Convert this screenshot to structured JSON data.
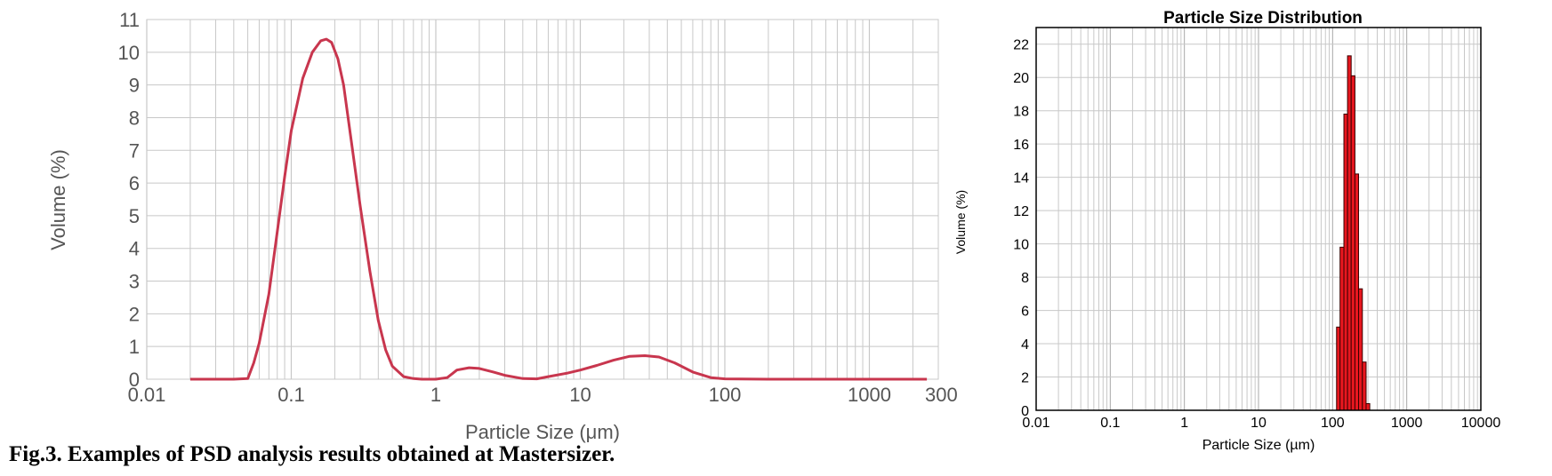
{
  "caption": "Fig.3.  Examples of PSD analysis results obtained at Mastersizer.",
  "colors": {
    "curve": "#c8364e",
    "bar_fill": "#e8171f",
    "bar_stroke": "#3a0000",
    "grid": "#c8c8c8",
    "left_text": "#555555",
    "right_text": "#000000"
  },
  "chart_data": [
    {
      "type": "line",
      "title": "",
      "xlabel": "Particle Size (μm)",
      "ylabel": "Volume (%)",
      "xscale": "log",
      "xlim": [
        0.01,
        3000
      ],
      "ylim": [
        0,
        11
      ],
      "xticks": [
        0.01,
        0.1,
        1,
        10,
        100,
        1000
      ],
      "xtick_labels": [
        "0.01",
        "0.1",
        "1",
        "10",
        "100",
        "1000"
      ],
      "x_end_label": "300",
      "yticks": [
        0,
        1,
        2,
        3,
        4,
        5,
        6,
        7,
        8,
        9,
        10,
        11
      ],
      "grid": true,
      "series": [
        {
          "x": [
            0.02,
            0.03,
            0.04,
            0.05,
            0.055,
            0.06,
            0.07,
            0.08,
            0.09,
            0.1,
            0.12,
            0.14,
            0.16,
            0.175,
            0.19,
            0.21,
            0.23,
            0.26,
            0.3,
            0.35,
            0.4,
            0.45,
            0.5,
            0.6,
            0.7,
            0.8,
            1.0,
            1.2,
            1.4,
            1.7,
            2.0,
            2.5,
            3.0,
            4.0,
            5.0,
            6.0,
            8.0,
            10,
            13,
            17,
            22,
            28,
            35,
            45,
            60,
            80,
            100,
            200,
            500,
            1000,
            2500
          ],
          "y": [
            0,
            0,
            0,
            0.02,
            0.5,
            1.1,
            2.6,
            4.5,
            6.2,
            7.6,
            9.2,
            10.0,
            10.35,
            10.4,
            10.3,
            9.8,
            9.0,
            7.3,
            5.3,
            3.3,
            1.8,
            0.9,
            0.4,
            0.08,
            0.02,
            0,
            0,
            0.05,
            0.28,
            0.35,
            0.33,
            0.22,
            0.12,
            0.02,
            0.01,
            0.08,
            0.18,
            0.28,
            0.42,
            0.58,
            0.7,
            0.72,
            0.68,
            0.5,
            0.22,
            0.05,
            0.01,
            0,
            0,
            0,
            0
          ]
        }
      ]
    },
    {
      "type": "bar",
      "title": "Particle Size Distribution",
      "xlabel": "Particle Size (µm)",
      "ylabel": "Volume (%)",
      "xscale": "log",
      "xlim": [
        0.01,
        10000
      ],
      "ylim": [
        0,
        23
      ],
      "xticks": [
        0.01,
        0.1,
        1,
        10,
        100,
        1000,
        10000
      ],
      "xtick_labels": [
        "0.01",
        "0.1",
        "1",
        "10",
        "100",
        "1000",
        "10000"
      ],
      "yticks": [
        0,
        2,
        4,
        6,
        8,
        10,
        12,
        14,
        16,
        18,
        20,
        22
      ],
      "grid": true,
      "bins": [
        {
          "x0": 113,
          "x1": 126,
          "value": 5.0
        },
        {
          "x0": 126,
          "x1": 142,
          "value": 9.8
        },
        {
          "x0": 142,
          "x1": 159,
          "value": 17.8
        },
        {
          "x0": 159,
          "x1": 178,
          "value": 21.3
        },
        {
          "x0": 178,
          "x1": 200,
          "value": 20.1
        },
        {
          "x0": 200,
          "x1": 224,
          "value": 14.2
        },
        {
          "x0": 224,
          "x1": 252,
          "value": 7.3
        },
        {
          "x0": 252,
          "x1": 283,
          "value": 2.9
        },
        {
          "x0": 283,
          "x1": 317,
          "value": 0.4
        }
      ]
    }
  ]
}
